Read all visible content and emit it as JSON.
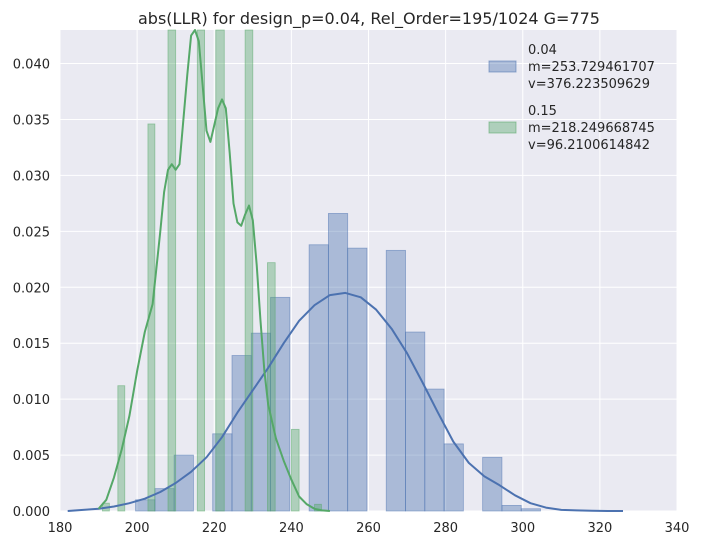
{
  "chart_data": {
    "type": "histogram",
    "title": "abs(LLR) for design_p=0.04, Rel_Order=195/1024 G=775",
    "xlabel": "",
    "ylabel": "",
    "xlim": [
      180,
      340
    ],
    "ylim": [
      0,
      0.043
    ],
    "x_ticks": [
      180,
      200,
      220,
      240,
      260,
      280,
      300,
      320,
      340
    ],
    "x_tick_labels": [
      "180",
      "200",
      "220",
      "240",
      "260",
      "280",
      "300",
      "320",
      "340"
    ],
    "y_ticks": [
      0,
      0.005,
      0.01,
      0.015,
      0.02,
      0.025,
      0.03,
      0.035,
      0.04
    ],
    "y_tick_labels": [
      "0.000",
      "0.005",
      "0.010",
      "0.015",
      "0.020",
      "0.025",
      "0.030",
      "0.035",
      "0.040"
    ],
    "grid": true,
    "legend_position": "top-right",
    "series": [
      {
        "name": "0.04\n m=253.729461707\n v=376.223509629",
        "legend_lines": [
          "0.04",
          " m=253.729461707",
          " v=376.223509629"
        ],
        "color": "#4c72b0",
        "bins": [
          [
            199.6,
            204.6,
            0.001
          ],
          [
            204.6,
            209.6,
            0.002
          ],
          [
            209.6,
            214.6,
            0.005
          ],
          [
            214.6,
            219.6,
            0.0
          ],
          [
            219.6,
            224.6,
            0.0069
          ],
          [
            224.6,
            229.6,
            0.0139
          ],
          [
            229.6,
            234.6,
            0.0159
          ],
          [
            234.6,
            239.6,
            0.0191
          ],
          [
            239.6,
            244.6,
            0.0
          ],
          [
            244.6,
            249.6,
            0.0238
          ],
          [
            249.6,
            254.6,
            0.0266
          ],
          [
            254.6,
            259.6,
            0.0235
          ],
          [
            259.6,
            264.6,
            0.0
          ],
          [
            264.6,
            269.6,
            0.0233
          ],
          [
            269.6,
            274.6,
            0.016
          ],
          [
            274.6,
            279.6,
            0.0109
          ],
          [
            279.6,
            284.6,
            0.006
          ],
          [
            284.6,
            289.6,
            0.0
          ],
          [
            289.6,
            294.6,
            0.0048
          ],
          [
            294.6,
            299.6,
            0.0005
          ],
          [
            299.6,
            304.6,
            0.0002
          ]
        ],
        "kde_x": [
          182,
          186,
          190,
          194,
          198,
          202,
          206,
          210,
          214,
          218,
          222,
          226,
          230,
          234,
          238,
          242,
          246,
          250,
          254,
          258,
          262,
          266,
          270,
          274,
          278,
          282,
          286,
          290,
          294,
          298,
          302,
          306,
          310,
          314,
          318,
          322,
          326
        ],
        "kde_y": [
          0.0,
          0.0001,
          0.0002,
          0.0004,
          0.0007,
          0.0011,
          0.0017,
          0.0025,
          0.0035,
          0.0048,
          0.0066,
          0.0088,
          0.0108,
          0.0128,
          0.015,
          0.017,
          0.0184,
          0.0193,
          0.0195,
          0.0191,
          0.018,
          0.0163,
          0.0141,
          0.0115,
          0.0088,
          0.0062,
          0.0043,
          0.0031,
          0.0023,
          0.0014,
          0.0007,
          0.0003,
          0.0001,
          5e-05,
          2e-05,
          0.0,
          0.0
        ]
      },
      {
        "name": "0.15\n m=218.249668745\n v=96.2100614842",
        "legend_lines": [
          "0.15",
          " m=218.249668745",
          " v=96.2100614842"
        ],
        "color": "#55a868",
        "bins": [
          [
            191.0,
            192.8,
            0.0007
          ],
          [
            195.0,
            196.8,
            0.0112
          ],
          [
            202.8,
            204.6,
            0.0346
          ],
          [
            208.0,
            210.0,
            0.043
          ],
          [
            215.6,
            217.5,
            0.043
          ],
          [
            220.4,
            222.6,
            0.043
          ],
          [
            228.0,
            230.0,
            0.043
          ],
          [
            233.8,
            235.8,
            0.0222
          ],
          [
            240.0,
            242.0,
            0.0073
          ],
          [
            246.0,
            247.8,
            0.0006
          ]
        ],
        "kde_x": [
          190,
          192,
          194,
          196,
          198,
          200,
          202,
          204,
          206,
          207,
          208,
          209,
          210,
          211,
          212,
          213,
          214,
          215,
          216,
          217,
          218,
          219,
          220,
          221,
          222,
          223,
          224,
          225,
          226,
          227,
          228,
          229,
          230,
          231,
          232,
          233,
          234,
          236,
          238,
          240,
          242,
          244,
          246,
          248,
          250
        ],
        "kde_y": [
          0.0002,
          0.001,
          0.003,
          0.0055,
          0.0085,
          0.0125,
          0.016,
          0.0185,
          0.025,
          0.0285,
          0.0305,
          0.031,
          0.0305,
          0.031,
          0.035,
          0.039,
          0.0425,
          0.043,
          0.042,
          0.038,
          0.034,
          0.033,
          0.0345,
          0.036,
          0.0368,
          0.036,
          0.032,
          0.0275,
          0.0258,
          0.0255,
          0.0265,
          0.0273,
          0.026,
          0.022,
          0.017,
          0.0125,
          0.0095,
          0.0065,
          0.0045,
          0.0028,
          0.0013,
          0.0006,
          0.0002,
          5e-05,
          0.0
        ]
      }
    ]
  }
}
